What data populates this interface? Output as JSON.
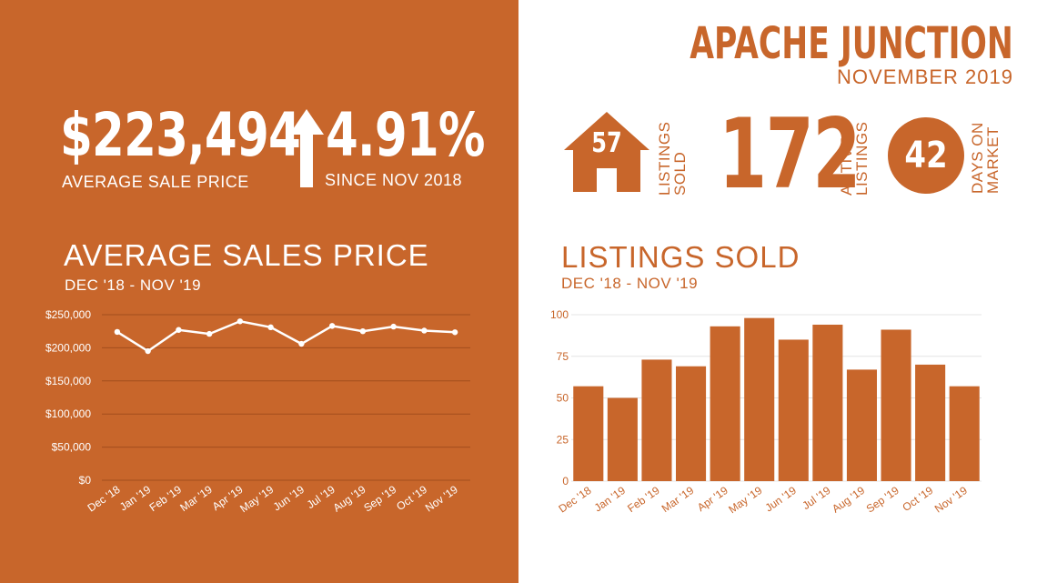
{
  "header": {
    "city": "APACHE JUNCTION",
    "month": "NOVEMBER 2019"
  },
  "stats": {
    "avg_sale_price": "$223,494",
    "avg_sale_price_label": "AVERAGE  SALE PRICE",
    "pct_change": "4.91%",
    "pct_change_label": "SINCE NOV 2018",
    "listings_sold": "57",
    "listings_sold_label_1": "LISTINGS",
    "listings_sold_label_2": "SOLD",
    "active_listings": "172",
    "active_listings_label_1": "ACTIVE",
    "active_listings_label_2": "LISTINGS",
    "days_on_market": "42",
    "days_on_market_label_1": "DAYS ON",
    "days_on_market_label_2": "MARKET"
  },
  "icons": {
    "arrow": "arrow-up-icon",
    "house": "house-icon"
  },
  "colors": {
    "brand": "#c8662b",
    "white": "#ffffff"
  },
  "chart_data": [
    {
      "type": "line",
      "title": "AVERAGE SALES PRICE",
      "subtitle": "DEC '18 - NOV '19",
      "categories": [
        "Dec '18",
        "Jan '19",
        "Feb '19",
        "Mar '19",
        "Apr '19",
        "May '19",
        "Jun '19",
        "Jul '19",
        "Aug '19",
        "Sep '19",
        "Oct '19",
        "Nov '19"
      ],
      "values": [
        224000,
        195000,
        227000,
        221000,
        240000,
        231000,
        206000,
        233000,
        225000,
        232000,
        226000,
        223494
      ],
      "ylim": [
        0,
        250000
      ],
      "yticks": [
        0,
        50000,
        100000,
        150000,
        200000,
        250000
      ],
      "ytick_labels": [
        "$0",
        "$50,000",
        "$100,000",
        "$150,000",
        "$200,000",
        "$250,000"
      ],
      "grid": true
    },
    {
      "type": "bar",
      "title": "LISTINGS SOLD",
      "subtitle": "DEC '18 - NOV '19",
      "categories": [
        "Dec '18",
        "Jan '19",
        "Feb '19",
        "Mar '19",
        "Apr '19",
        "May '19",
        "Jun '19",
        "Jul '19",
        "Aug '19",
        "Sep '19",
        "Oct '19",
        "Nov '19"
      ],
      "values": [
        57,
        50,
        73,
        69,
        93,
        98,
        85,
        94,
        67,
        91,
        70,
        57
      ],
      "ylim": [
        0,
        100
      ],
      "yticks": [
        0,
        25,
        50,
        75,
        100
      ],
      "ytick_labels": [
        "0",
        "25",
        "50",
        "75",
        "100"
      ],
      "grid": true
    }
  ]
}
